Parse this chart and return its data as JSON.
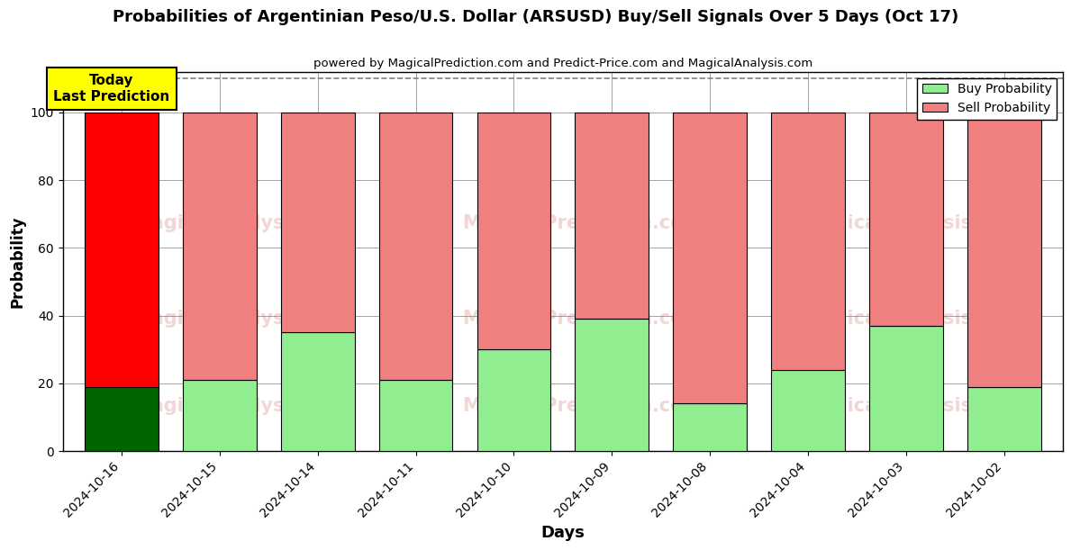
{
  "title": "Probabilities of Argentinian Peso/U.S. Dollar (ARSUSD) Buy/Sell Signals Over 5 Days (Oct 17)",
  "subtitle": "powered by MagicalPrediction.com and Predict-Price.com and MagicalAnalysis.com",
  "xlabel": "Days",
  "ylabel": "Probability",
  "categories": [
    "2024-10-16",
    "2024-10-15",
    "2024-10-14",
    "2024-10-11",
    "2024-10-10",
    "2024-10-09",
    "2024-10-08",
    "2024-10-04",
    "2024-10-03",
    "2024-10-02"
  ],
  "buy_values": [
    19,
    21,
    35,
    21,
    30,
    39,
    14,
    24,
    37,
    19
  ],
  "sell_values": [
    81,
    79,
    65,
    79,
    70,
    61,
    86,
    76,
    63,
    81
  ],
  "today_buy_color": "#006400",
  "today_sell_color": "#FF0000",
  "buy_color": "#90EE90",
  "sell_color": "#F08080",
  "today_annotation_bg": "#FFFF00",
  "today_annotation_text": "Today\nLast Prediction",
  "ylim": [
    0,
    112
  ],
  "dashed_line_y": 110,
  "legend_buy_label": "Buy Probability",
  "legend_sell_label": "Sell Probability",
  "watermark1": "MagicalAnalysis.com",
  "watermark2": "MagicalPrediction.com",
  "fig_width": 12.0,
  "fig_height": 6.0,
  "bar_width": 0.75
}
